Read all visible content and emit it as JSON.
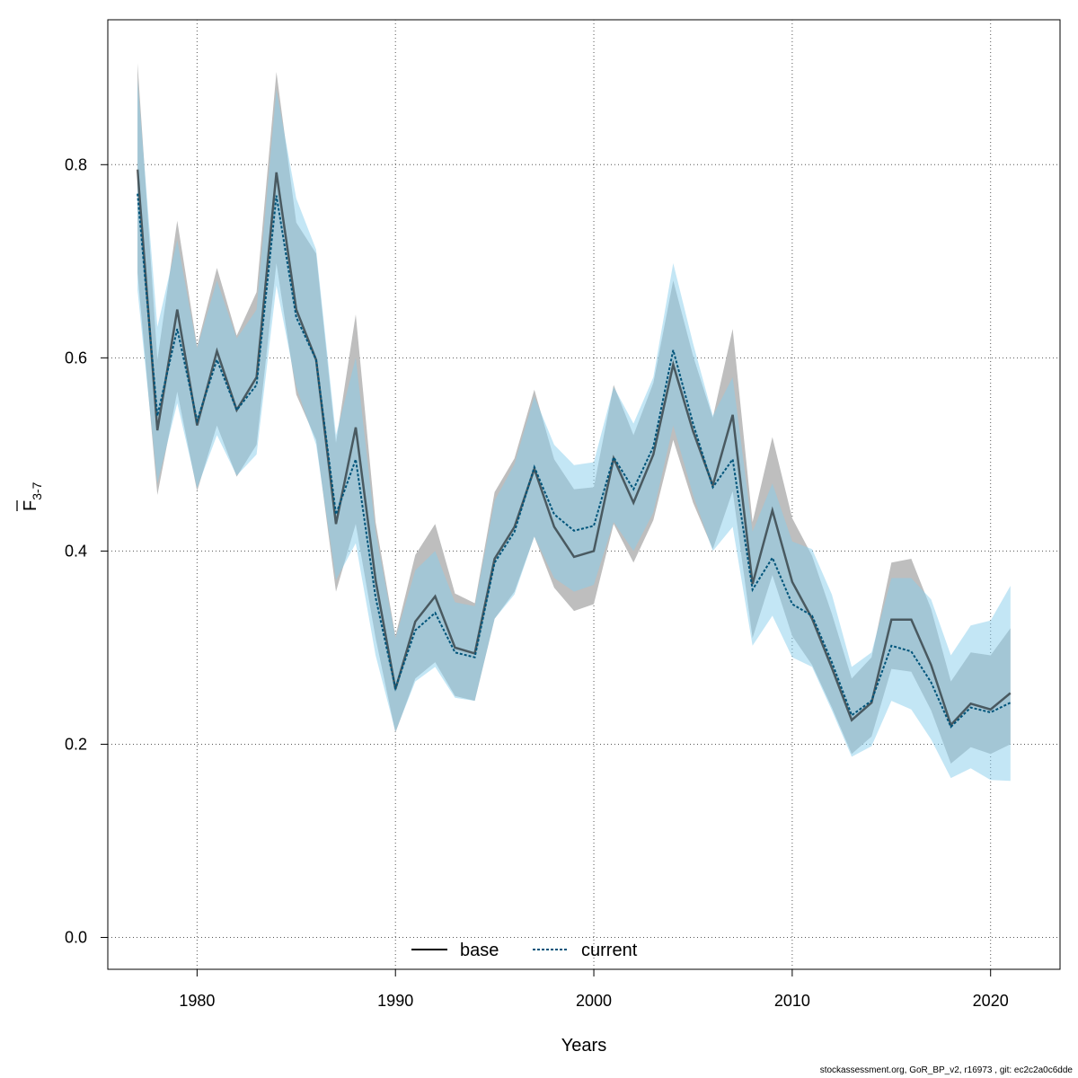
{
  "chart_data": {
    "type": "line",
    "xlabel": "Years",
    "ylabel": {
      "main": "F",
      "subscript": "3-7"
    },
    "xlim": [
      1975.5,
      2023.5
    ],
    "ylim": [
      -0.033,
      0.95
    ],
    "xticks": [
      1980,
      1990,
      2000,
      2010,
      2020
    ],
    "yticks": [
      0.0,
      0.2,
      0.4,
      0.6,
      0.8
    ],
    "grid": true,
    "legend_position": "bottom-center",
    "x": [
      1977,
      1978,
      1979,
      1980,
      1981,
      1982,
      1983,
      1984,
      1985,
      1986,
      1987,
      1988,
      1989,
      1990,
      1991,
      1992,
      1993,
      1994,
      1995,
      1996,
      1997,
      1998,
      1999,
      2000,
      2001,
      2002,
      2003,
      2004,
      2005,
      2006,
      2007,
      2008,
      2009,
      2010,
      2011,
      2012,
      2013,
      2014,
      2015,
      2016,
      2017,
      2018,
      2019,
      2020,
      2021
    ],
    "series": [
      {
        "name": "base",
        "line_style": "solid",
        "line_color": "#000000",
        "band_color": "#bebebe",
        "values": [
          0.795,
          0.525,
          0.65,
          0.53,
          0.607,
          0.546,
          0.58,
          0.792,
          0.65,
          0.598,
          0.428,
          0.528,
          0.37,
          0.257,
          0.327,
          0.353,
          0.3,
          0.294,
          0.392,
          0.425,
          0.485,
          0.425,
          0.394,
          0.4,
          0.496,
          0.45,
          0.5,
          0.593,
          0.524,
          0.468,
          0.541,
          0.366,
          0.442,
          0.368,
          0.33,
          0.279,
          0.225,
          0.243,
          0.329,
          0.329,
          0.282,
          0.22,
          0.242,
          0.236,
          0.253
        ],
        "lower": [
          0.688,
          0.458,
          0.565,
          0.462,
          0.53,
          0.477,
          0.51,
          0.698,
          0.562,
          0.515,
          0.358,
          0.428,
          0.31,
          0.212,
          0.268,
          0.285,
          0.25,
          0.245,
          0.33,
          0.358,
          0.415,
          0.362,
          0.338,
          0.345,
          0.428,
          0.388,
          0.432,
          0.515,
          0.45,
          0.402,
          0.462,
          0.31,
          0.375,
          0.312,
          0.282,
          0.238,
          0.19,
          0.208,
          0.278,
          0.275,
          0.235,
          0.18,
          0.197,
          0.19,
          0.2
        ],
        "upper": [
          0.905,
          0.598,
          0.742,
          0.612,
          0.693,
          0.623,
          0.668,
          0.896,
          0.74,
          0.708,
          0.512,
          0.645,
          0.43,
          0.312,
          0.396,
          0.428,
          0.356,
          0.346,
          0.461,
          0.496,
          0.567,
          0.495,
          0.464,
          0.466,
          0.572,
          0.52,
          0.574,
          0.68,
          0.602,
          0.538,
          0.63,
          0.43,
          0.518,
          0.434,
          0.395,
          0.335,
          0.268,
          0.29,
          0.388,
          0.392,
          0.34,
          0.265,
          0.295,
          0.292,
          0.32
        ]
      },
      {
        "name": "current",
        "line_style": "dotted",
        "line_color": "#00547a",
        "band_color": "#87ceeb",
        "values": [
          0.77,
          0.54,
          0.63,
          0.535,
          0.598,
          0.546,
          0.572,
          0.768,
          0.642,
          0.598,
          0.438,
          0.495,
          0.352,
          0.258,
          0.318,
          0.336,
          0.295,
          0.29,
          0.388,
          0.42,
          0.487,
          0.438,
          0.421,
          0.426,
          0.497,
          0.464,
          0.508,
          0.608,
          0.532,
          0.466,
          0.495,
          0.36,
          0.393,
          0.345,
          0.333,
          0.285,
          0.23,
          0.245,
          0.302,
          0.296,
          0.264,
          0.218,
          0.238,
          0.233,
          0.243
        ],
        "lower": [
          0.67,
          0.47,
          0.553,
          0.465,
          0.52,
          0.478,
          0.5,
          0.675,
          0.57,
          0.51,
          0.37,
          0.408,
          0.292,
          0.213,
          0.265,
          0.28,
          0.248,
          0.245,
          0.33,
          0.355,
          0.415,
          0.372,
          0.358,
          0.365,
          0.43,
          0.4,
          0.44,
          0.53,
          0.458,
          0.4,
          0.425,
          0.302,
          0.333,
          0.29,
          0.28,
          0.235,
          0.187,
          0.198,
          0.245,
          0.236,
          0.205,
          0.165,
          0.175,
          0.163,
          0.162
        ],
        "upper": [
          0.888,
          0.632,
          0.722,
          0.61,
          0.68,
          0.62,
          0.65,
          0.878,
          0.765,
          0.712,
          0.52,
          0.6,
          0.42,
          0.31,
          0.38,
          0.4,
          0.347,
          0.343,
          0.452,
          0.49,
          0.56,
          0.51,
          0.489,
          0.492,
          0.57,
          0.532,
          0.58,
          0.698,
          0.615,
          0.54,
          0.58,
          0.42,
          0.47,
          0.41,
          0.402,
          0.355,
          0.28,
          0.295,
          0.372,
          0.372,
          0.35,
          0.292,
          0.323,
          0.328,
          0.364
        ]
      }
    ]
  },
  "footer": "stockassessment.org, GoR_BP_v2, r16973 , git: ec2c2a0c6dde"
}
